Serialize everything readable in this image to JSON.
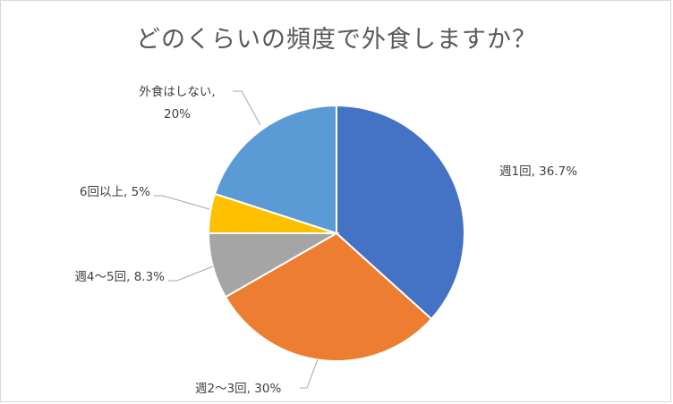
{
  "chart_data": {
    "type": "pie",
    "title": "どのくらいの頻度で外食しますか？",
    "slices": [
      {
        "label": "週1回",
        "value": 36.7,
        "value_label": "36.7%",
        "color": "#4472c4"
      },
      {
        "label": "週2〜3回",
        "value": 30,
        "value_label": "30%",
        "color": "#ed7d31"
      },
      {
        "label": "週4〜5回",
        "value": 8.3,
        "value_label": "8.3%",
        "color": "#a5a5a5"
      },
      {
        "label": "6回以上",
        "value": 5,
        "value_label": "5%",
        "color": "#ffc000"
      },
      {
        "label": "外食はしない",
        "value": 20,
        "value_label": "20%",
        "color": "#5b9bd5"
      }
    ],
    "start_angle": "12 o'clock",
    "direction": "clockwise",
    "legend": "none",
    "data_labels": "category, value"
  }
}
